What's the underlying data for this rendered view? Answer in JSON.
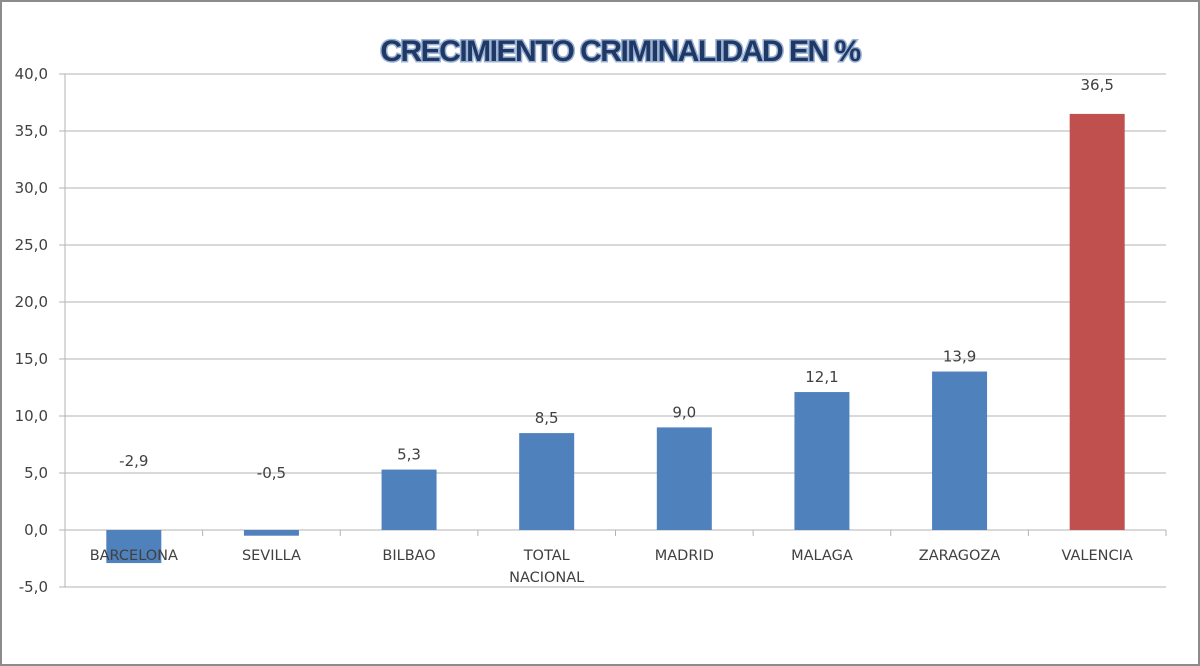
{
  "chart_data": {
    "type": "bar",
    "title": "CRECIMIENTO CRIMINALIDAD EN %",
    "xlabel": "",
    "ylabel": "",
    "ylim": [
      -5,
      40
    ],
    "ytick_step": 5,
    "ytick_labels": [
      "-5,0",
      "0,0",
      "5,0",
      "10,0",
      "15,0",
      "20,0",
      "25,0",
      "30,0",
      "35,0",
      "40,0"
    ],
    "grid": true,
    "legend": "none",
    "categories": [
      [
        "BARCELONA"
      ],
      [
        "SEVILLA"
      ],
      [
        "BILBAO"
      ],
      [
        "TOTAL",
        "NACIONAL"
      ],
      [
        "MADRID"
      ],
      [
        "MALAGA"
      ],
      [
        "ZARAGOZA"
      ],
      [
        "VALENCIA"
      ]
    ],
    "values": [
      -2.9,
      -0.5,
      5.3,
      8.5,
      9.0,
      12.1,
      13.9,
      36.5
    ],
    "data_labels": [
      "-2,9",
      "-0,5",
      "5,3",
      "8,5",
      "9,0",
      "12,1",
      "13,9",
      "36,5"
    ],
    "colors": {
      "default_bar": "#4f81bd",
      "highlight_bar": "#c0504d",
      "highlight_index": 7,
      "gridline": "#b3b3b3",
      "text": "#404040"
    }
  }
}
